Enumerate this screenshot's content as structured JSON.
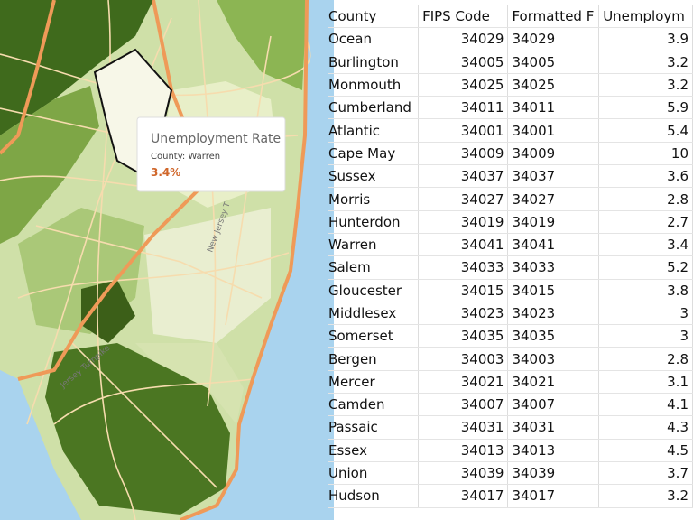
{
  "map": {
    "tooltip": {
      "title": "Unemployment Rate",
      "label": "County: Warren",
      "value": "3.4%"
    },
    "road_labels": [
      "New Jersey T",
      "Jersey Turnpike"
    ]
  },
  "table": {
    "header": [
      "County",
      "FIPS Code",
      "Formatted F",
      "Unemploym"
    ],
    "rows": [
      [
        "Ocean",
        34029,
        "34029",
        3.9
      ],
      [
        "Burlington",
        34005,
        "34005",
        3.2
      ],
      [
        "Monmouth",
        34025,
        "34025",
        3.2
      ],
      [
        "Cumberland",
        34011,
        "34011",
        5.9
      ],
      [
        "Atlantic",
        34001,
        "34001",
        5.4
      ],
      [
        "Cape May",
        34009,
        "34009",
        10
      ],
      [
        "Sussex",
        34037,
        "34037",
        3.6
      ],
      [
        "Morris",
        34027,
        "34027",
        2.8
      ],
      [
        "Hunterdon",
        34019,
        "34019",
        2.7
      ],
      [
        "Warren",
        34041,
        "34041",
        3.4
      ],
      [
        "Salem",
        34033,
        "34033",
        5.2
      ],
      [
        "Gloucester",
        34015,
        "34015",
        3.8
      ],
      [
        "Middlesex",
        34023,
        "34023",
        3
      ],
      [
        "Somerset",
        34035,
        "34035",
        3
      ],
      [
        "Bergen",
        34003,
        "34003",
        2.8
      ],
      [
        "Mercer",
        34021,
        "34021",
        3.1
      ],
      [
        "Camden",
        34007,
        "34007",
        4.1
      ],
      [
        "Passaic",
        34031,
        "34031",
        4.3
      ],
      [
        "Essex",
        34013,
        "34013",
        4.5
      ],
      [
        "Union",
        34039,
        "34039",
        3.7
      ],
      [
        "Hudson",
        34017,
        "34017",
        3.2
      ]
    ]
  }
}
